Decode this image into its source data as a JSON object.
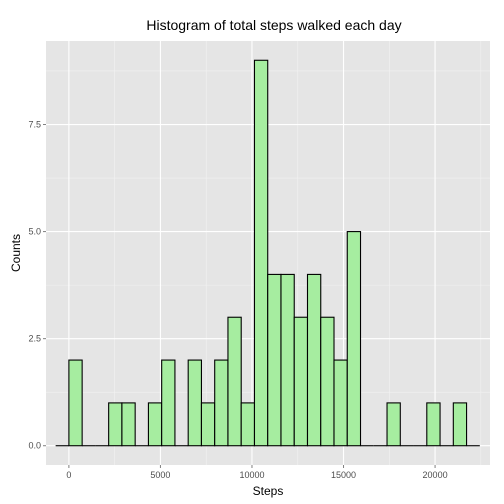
{
  "chart_data": {
    "type": "bar",
    "title": "Histogram of total steps walked each day",
    "xlabel": "Steps",
    "ylabel": "Counts",
    "colors": {
      "bar_fill": "#a6eda0",
      "bar_stroke": "#000000",
      "panel": "#e5e5e5",
      "grid_major": "#ffffff",
      "grid_minor": "#f2f2f2"
    },
    "xlim": [
      -1250,
      23000
    ],
    "ylim": [
      -0.45,
      9.45
    ],
    "x_ticks": [
      0,
      5000,
      10000,
      15000,
      20000
    ],
    "x_tick_labels": [
      "0",
      "5000",
      "10000",
      "15000",
      "20000"
    ],
    "y_ticks": [
      0,
      2.5,
      5,
      7.5
    ],
    "y_tick_labels": [
      "0.0",
      "2.5",
      "5.0",
      "7.5"
    ],
    "bin_width": 724,
    "bin_starts": [
      -724,
      0,
      724,
      1448,
      2172,
      2896,
      3620,
      4344,
      5068,
      5792,
      6516,
      7240,
      7964,
      8688,
      9412,
      10136,
      10860,
      11584,
      12308,
      13032,
      13756,
      14480,
      15204,
      15928,
      16652,
      17376,
      18100,
      18824,
      19548,
      20272,
      20996,
      21720
    ],
    "counts": [
      0,
      2,
      0,
      0,
      1,
      1,
      0,
      1,
      2,
      0,
      2,
      1,
      2,
      3,
      1,
      9,
      4,
      4,
      3,
      4,
      3,
      2,
      5,
      0,
      0,
      1,
      0,
      0,
      1,
      0,
      1,
      0
    ]
  }
}
